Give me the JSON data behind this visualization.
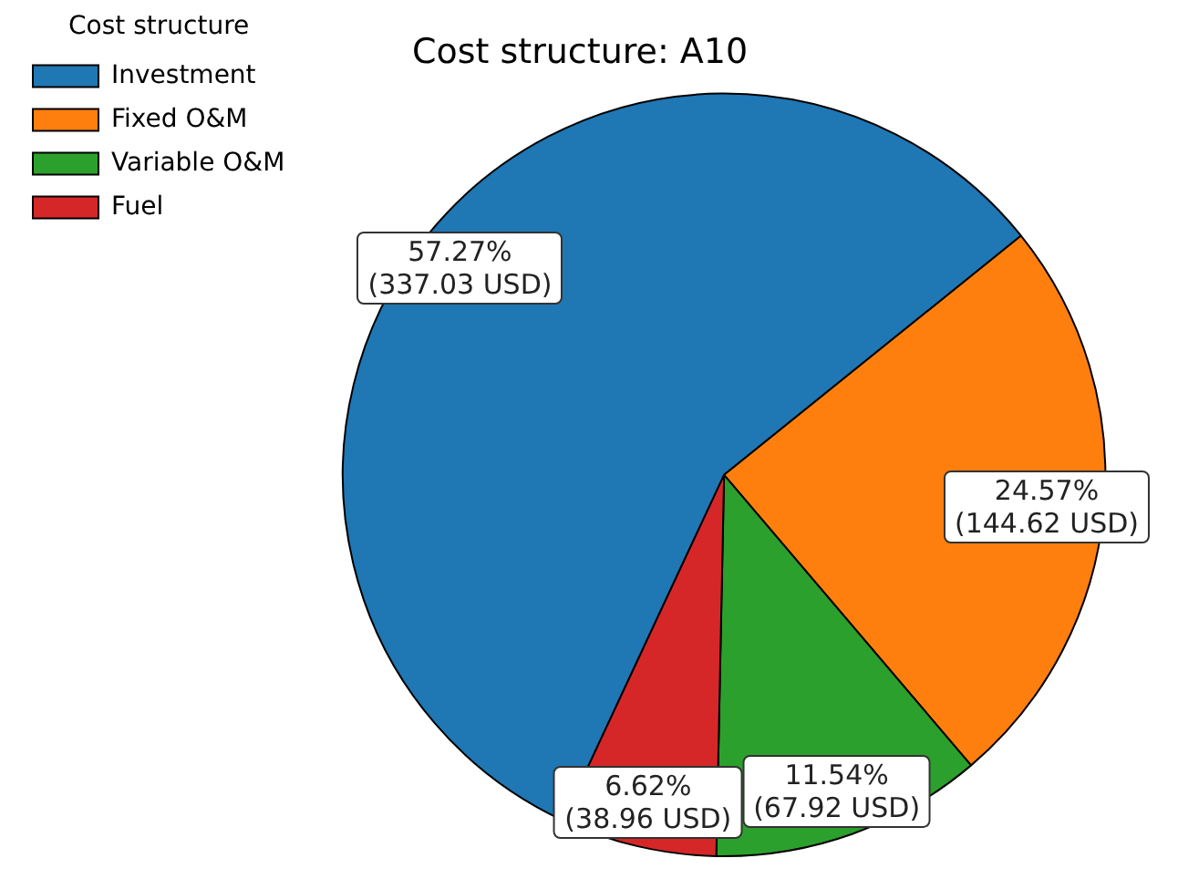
{
  "chart_data": {
    "type": "pie",
    "title": "Cost structure: A10",
    "legend_title": "Cost structure",
    "legend": "top left",
    "categories": [
      "Investment",
      "Fixed O&M",
      "Variable O&M",
      "Fuel"
    ],
    "values": [
      337.03,
      144.62,
      67.92,
      38.96
    ],
    "colors": [
      "#1f77b4",
      "#ff7f0e",
      "#2ca02c",
      "#d62728"
    ],
    "value_labels": [
      "57.27%\n(337.03 USD)",
      "24.57%\n(144.62 USD)",
      "11.54%\n(67.92 USD)",
      "6.62%\n(38.96 USD)"
    ]
  }
}
